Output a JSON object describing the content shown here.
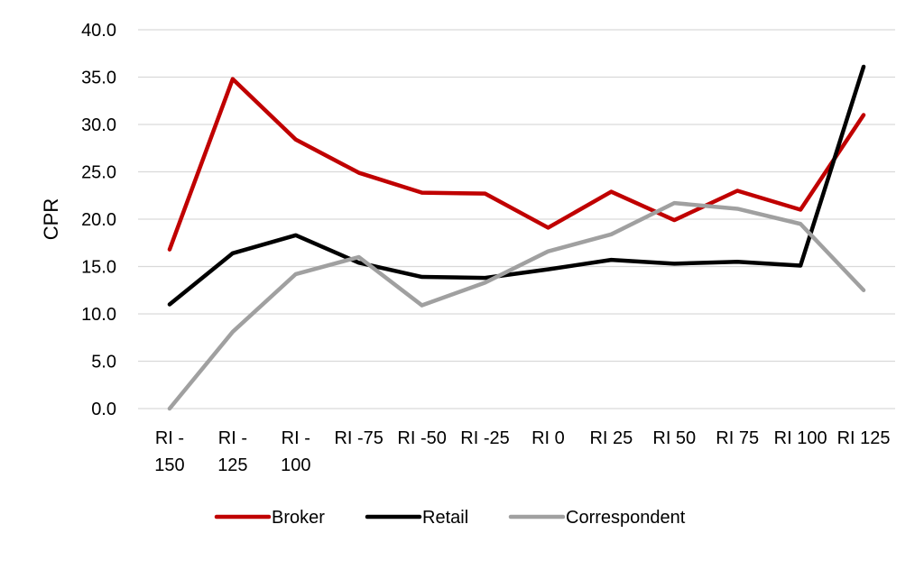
{
  "chart_data": {
    "type": "line",
    "title": "",
    "xlabel": "",
    "ylabel": "CPR",
    "ylim": [
      0,
      40
    ],
    "y_ticks": [
      "0.0",
      "5.0",
      "10.0",
      "15.0",
      "20.0",
      "25.0",
      "30.0",
      "35.0",
      "40.0"
    ],
    "grid": true,
    "legend_position": "bottom",
    "categories": [
      [
        "RI -",
        "150"
      ],
      [
        "RI -",
        "125"
      ],
      [
        "RI -",
        "100"
      ],
      [
        "RI -75"
      ],
      [
        "RI -50"
      ],
      [
        "RI -25"
      ],
      [
        "RI 0"
      ],
      [
        "RI 25"
      ],
      [
        "RI 50"
      ],
      [
        "RI 75"
      ],
      [
        "RI 100"
      ],
      [
        "RI 125"
      ]
    ],
    "series": [
      {
        "name": "Broker",
        "color": "#C00000",
        "values": [
          16.8,
          34.8,
          28.4,
          24.9,
          22.8,
          22.7,
          19.1,
          22.9,
          19.9,
          23.0,
          21.0,
          31.0
        ]
      },
      {
        "name": "Retail",
        "color": "#000000",
        "values": [
          11.0,
          16.4,
          18.3,
          15.4,
          13.9,
          13.8,
          14.7,
          15.7,
          15.3,
          15.5,
          15.1,
          36.1
        ]
      },
      {
        "name": "Correspondent",
        "color": "#A0A0A0",
        "values": [
          0.0,
          8.1,
          14.2,
          16.0,
          10.9,
          13.3,
          16.6,
          18.4,
          21.7,
          21.1,
          19.5,
          12.5
        ]
      }
    ]
  }
}
